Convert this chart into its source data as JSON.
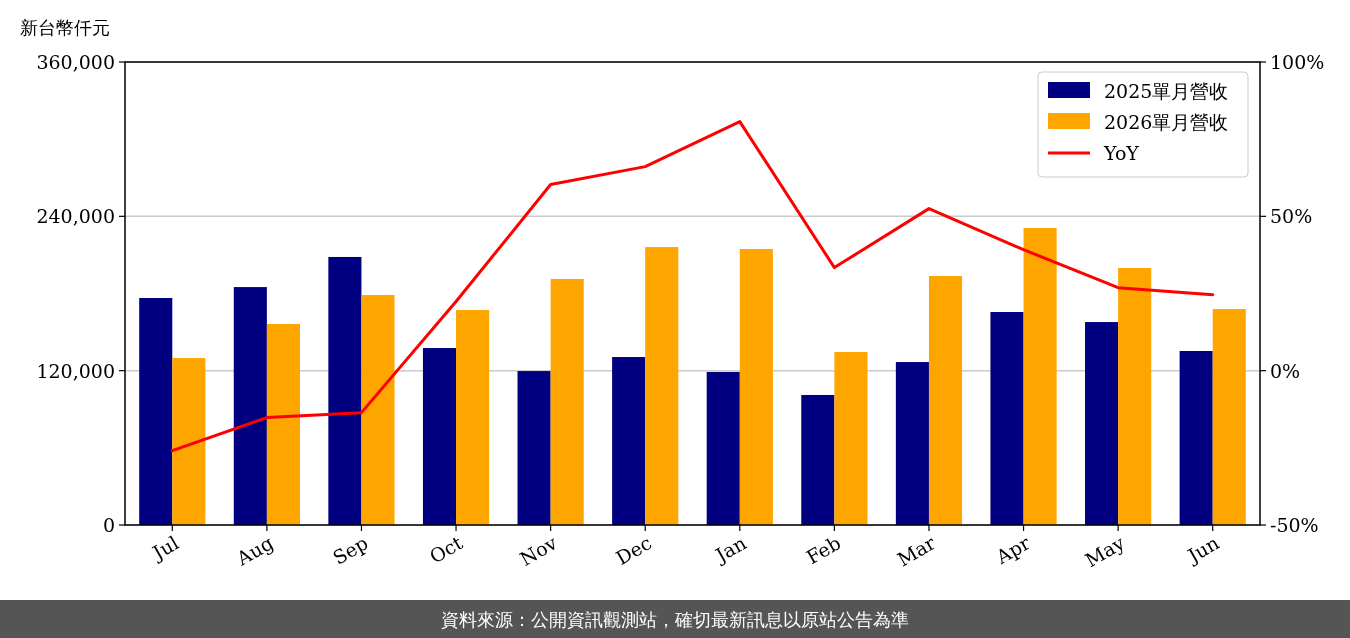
{
  "chart_data": {
    "type": "bar",
    "ylabel": "新台幣仟元",
    "categories": [
      "Jul",
      "Aug",
      "Sep",
      "Oct",
      "Nov",
      "Dec",
      "Jan",
      "Feb",
      "Mar",
      "Apr",
      "May",
      "Jun"
    ],
    "series": [
      {
        "name": "2025單月營收",
        "color": "#000080",
        "values": [
          176500,
          185000,
          208400,
          137600,
          119700,
          130600,
          119000,
          101100,
          126700,
          165600,
          157800,
          135300
        ]
      },
      {
        "name": "2026單月營收",
        "color": "#ffa500",
        "values": [
          129800,
          156300,
          178800,
          167200,
          191300,
          216100,
          214600,
          134500,
          193600,
          230900,
          199800,
          167900
        ]
      },
      {
        "name": "YoY",
        "type": "line",
        "axis": "y2",
        "color": "#ff0000",
        "values": [
          -25.9,
          -15.2,
          -13.6,
          22.4,
          60.3,
          66.1,
          80.7,
          33.4,
          52.5,
          39.2,
          26.9,
          24.6
        ]
      }
    ],
    "ylim": [
      0,
      360000
    ],
    "yticks": [
      0,
      {
        "value": 120000,
        "label": "120,000"
      },
      {
        "value": 240000,
        "label": "240,000"
      },
      {
        "value": 360000,
        "label": "360,000"
      }
    ],
    "y2lim": [
      -50,
      100
    ],
    "y2ticks": [
      {
        "value": -50,
        "label": "-50%"
      },
      {
        "value": 0,
        "label": "0%"
      },
      {
        "value": 50,
        "label": "50%"
      },
      {
        "value": 100,
        "label": "100%"
      }
    ],
    "grid": "y",
    "legend": "top right",
    "annotations": [
      "資料來源：公開資訊觀測站，確切最新訊息以原站公告為準"
    ]
  }
}
